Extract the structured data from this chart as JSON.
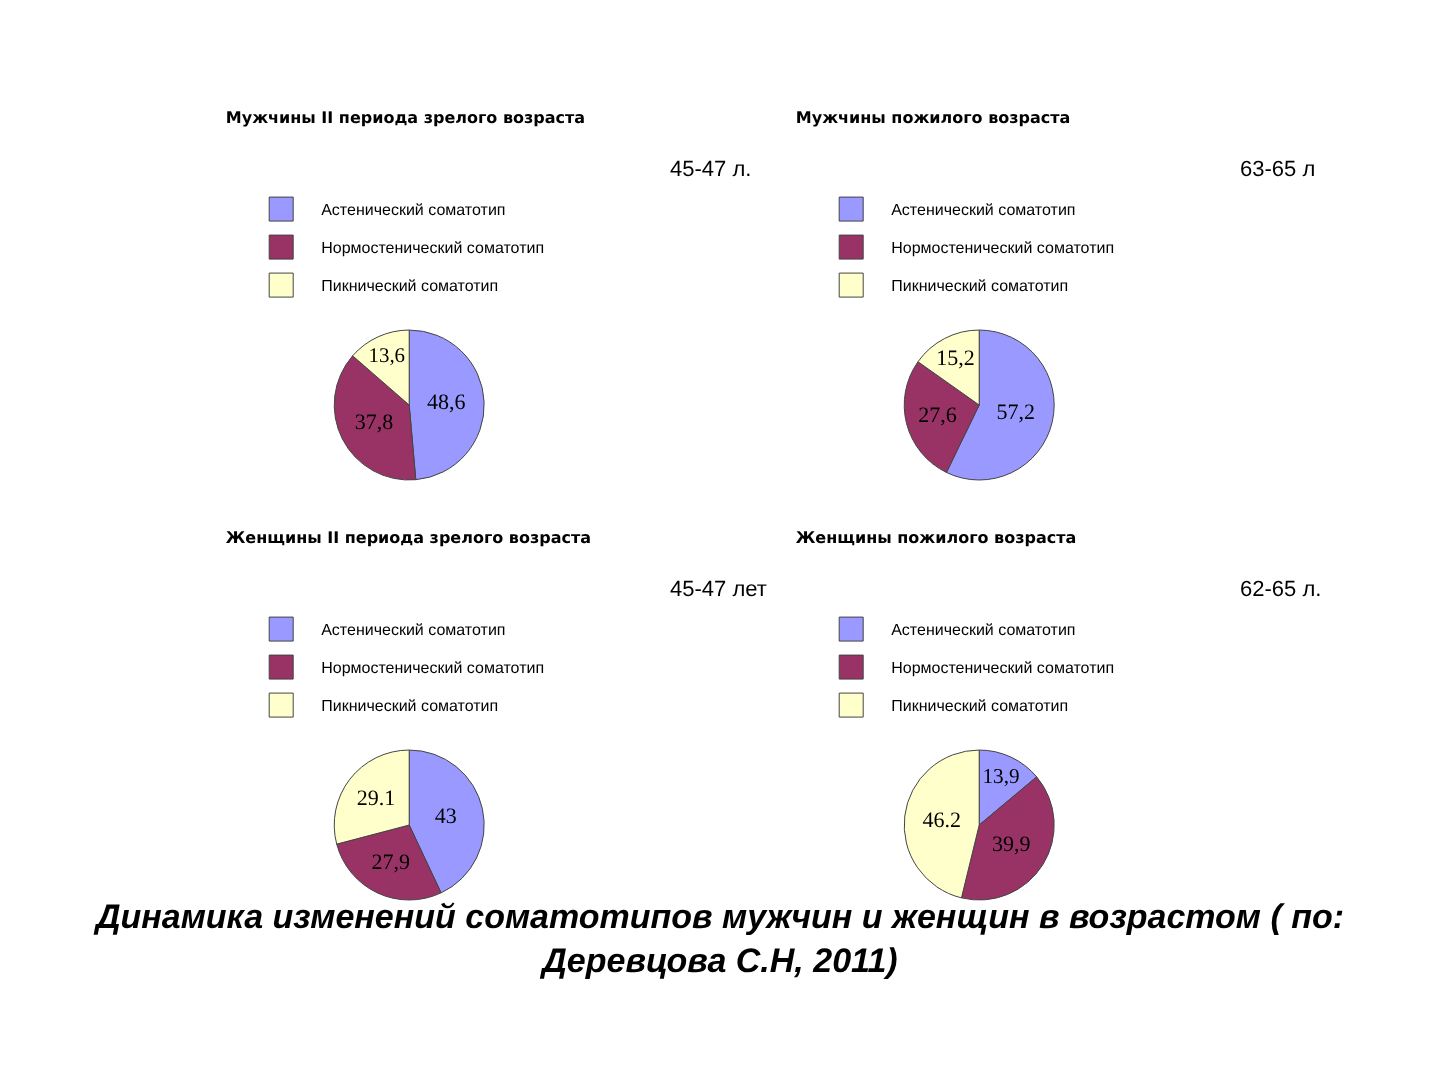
{
  "chart_data": [
    {
      "type": "pie",
      "title": "Мужчины II периода зрелого возраста",
      "subtitle": "45-47 л.",
      "categories": [
        "Астенический соматотип",
        "Нормостенический соматотип",
        "Пикнический соматотип"
      ],
      "values": [
        48.6,
        37.8,
        13.6
      ],
      "value_labels": [
        "48,6",
        "37,8",
        "13,6"
      ],
      "colors": [
        "#9999ff",
        "#993366",
        "#ffffcc"
      ],
      "legend": "top"
    },
    {
      "type": "pie",
      "title": "Мужчины пожилого возраста",
      "subtitle": "63-65 л",
      "categories": [
        "Астенический соматотип",
        "Нормостенический соматотип",
        "Пикнический соматотип"
      ],
      "values": [
        57.2,
        27.6,
        15.2
      ],
      "value_labels": [
        "57,2",
        "27,6",
        "15,2"
      ],
      "colors": [
        "#9999ff",
        "#993366",
        "#ffffcc"
      ],
      "legend": "top"
    },
    {
      "type": "pie",
      "title": "Женщины II периода зрелого возраста",
      "subtitle": "45-47 лет",
      "categories": [
        "Астенический соматотип",
        "Нормостенический соматотип",
        "Пикнический соматотип"
      ],
      "values": [
        43,
        27.9,
        29.1
      ],
      "value_labels": [
        "43",
        "27,9",
        "29.1"
      ],
      "colors": [
        "#9999ff",
        "#993366",
        "#ffffcc"
      ],
      "legend": "top"
    },
    {
      "type": "pie",
      "title": "Женщины пожилого возраста",
      "subtitle": "62-65 л.",
      "categories": [
        "Астенический соматотип",
        "Нормостенический соматотип",
        "Пикнический соматотип"
      ],
      "values": [
        13.9,
        39.9,
        46.2
      ],
      "value_labels": [
        "13,9",
        "39,9",
        "46.2"
      ],
      "colors": [
        "#9999ff",
        "#993366",
        "#ffffcc"
      ],
      "legend": "top",
      "annotations": [
        "Динамика изменений соматотипов мужчин и женщин в возрастом ( по: Деревцова С.Н, 2011)"
      ]
    }
  ]
}
